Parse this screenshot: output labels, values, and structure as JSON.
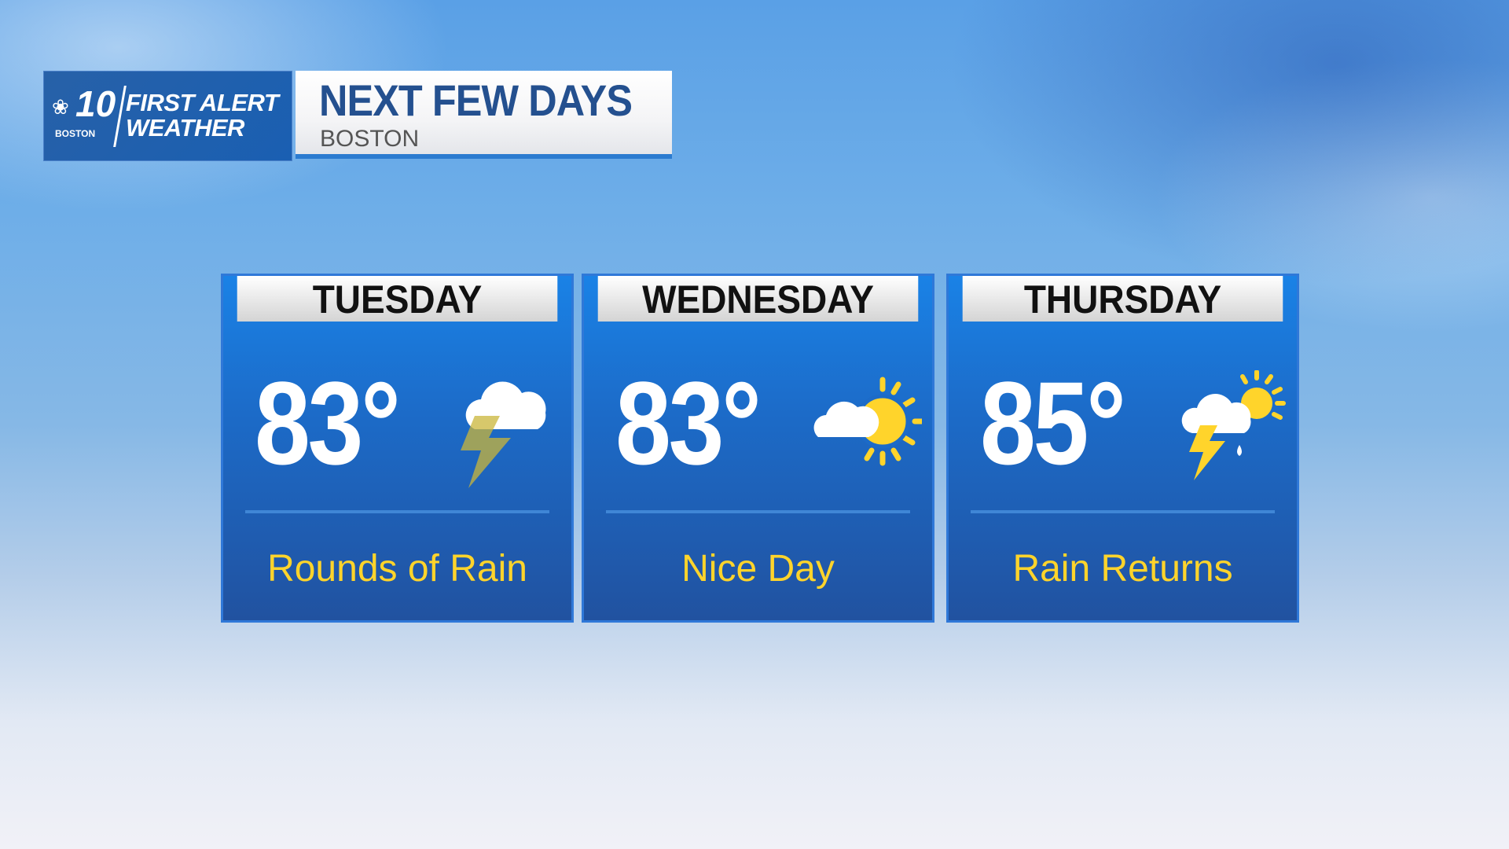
{
  "logo": {
    "station": "10",
    "city": "BOSTON",
    "brand_line1": "FIRST ALERT",
    "brand_line2": "WEATHER"
  },
  "header": {
    "title": "NEXT FEW DAYS",
    "subtitle": "BOSTON"
  },
  "days": [
    {
      "day": "TUESDAY",
      "temp": "83°",
      "icon": "thunderstorm-icon",
      "description": "Rounds of Rain"
    },
    {
      "day": "WEDNESDAY",
      "temp": "83°",
      "icon": "partly-sunny-icon",
      "description": "Nice Day"
    },
    {
      "day": "THURSDAY",
      "temp": "85°",
      "icon": "sun-thunderstorm-rain-icon",
      "description": "Rain Returns"
    }
  ],
  "colors": {
    "card_blue": "#1c6bc8",
    "description_yellow": "#ffd42b",
    "title_blue": "#24508f"
  }
}
